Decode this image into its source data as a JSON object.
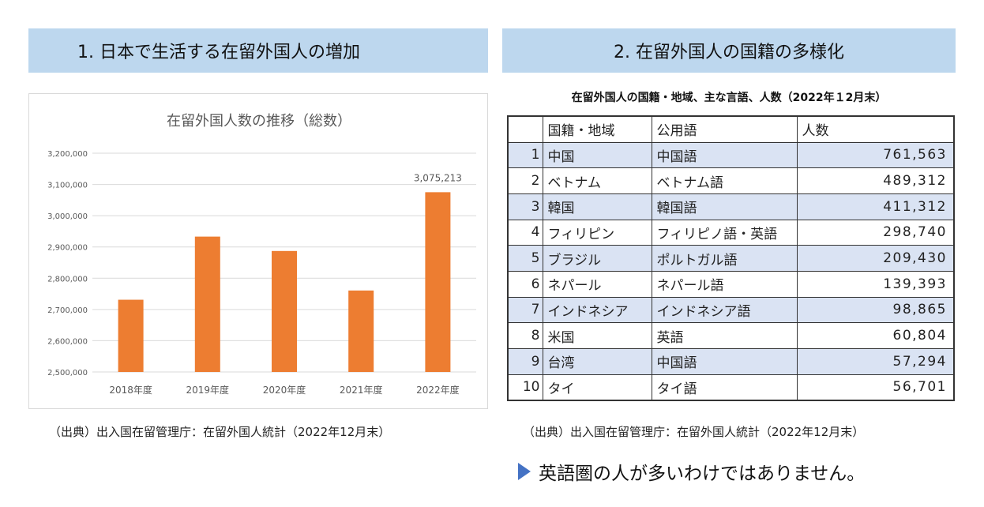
{
  "left_section": {
    "header": "1.  日本で生活する在留外国人の増加",
    "source": "（出典）出入国在留管理庁：在留外国人統計（2022年12月末）"
  },
  "right_section": {
    "header": "2.  在留外国人の国籍の多様化",
    "table_title": "在留外国人の国籍・地域、主な言語、人数（2022年１2月末）",
    "columns": [
      "",
      "国籍・地域",
      "公用語",
      "人数"
    ],
    "rows": [
      {
        "rank": "1",
        "country": "中国",
        "language": "中国語",
        "count": "761,563"
      },
      {
        "rank": "2",
        "country": "ベトナム",
        "language": "ベトナム語",
        "count": "489,312"
      },
      {
        "rank": "3",
        "country": "韓国",
        "language": "韓国語",
        "count": "411,312"
      },
      {
        "rank": "4",
        "country": "フィリピン",
        "language": "フィリピノ語・英語",
        "count": "298,740"
      },
      {
        "rank": "5",
        "country": "ブラジル",
        "language": "ポルトガル語",
        "count": "209,430"
      },
      {
        "rank": "6",
        "country": "ネパール",
        "language": "ネパール語",
        "count": "139,393"
      },
      {
        "rank": "7",
        "country": "インドネシア",
        "language": "インドネシア語",
        "count": "98,865"
      },
      {
        "rank": "8",
        "country": "米国",
        "language": "英語",
        "count": "60,804"
      },
      {
        "rank": "9",
        "country": "台湾",
        "language": "中国語",
        "count": "57,294"
      },
      {
        "rank": "10",
        "country": "タイ",
        "language": "タイ語",
        "count": "56,701"
      }
    ],
    "source": "（出典）出入国在留管理庁：在留外国人統計（2022年12月末）",
    "note": "英語圏の人が多いわけではありません。"
  },
  "colors": {
    "header_bg": "#bdd7ee",
    "bar": "#ed7d31",
    "row_shade": "#dae3f3",
    "note_marker": "#4472c4"
  },
  "chart_data": {
    "type": "bar",
    "title": "在留外国人数の推移（総数）",
    "categories": [
      "2018年度",
      "2019年度",
      "2020年度",
      "2021年度",
      "2022年度"
    ],
    "values": [
      2731093,
      2933137,
      2887116,
      2760635,
      3075213
    ],
    "data_labels": [
      "",
      "",
      "",
      "",
      "3,075,213"
    ],
    "ylim": [
      2500000,
      3200000
    ],
    "yticks": [
      2500000,
      2600000,
      2700000,
      2800000,
      2900000,
      3000000,
      3100000,
      3200000
    ],
    "ytick_labels": [
      "2,500,000",
      "2,600,000",
      "2,700,000",
      "2,800,000",
      "2,900,000",
      "3,000,000",
      "3,100,000",
      "3,200,000"
    ],
    "xlabel": "",
    "ylabel": "",
    "grid": true,
    "legend": "none"
  }
}
